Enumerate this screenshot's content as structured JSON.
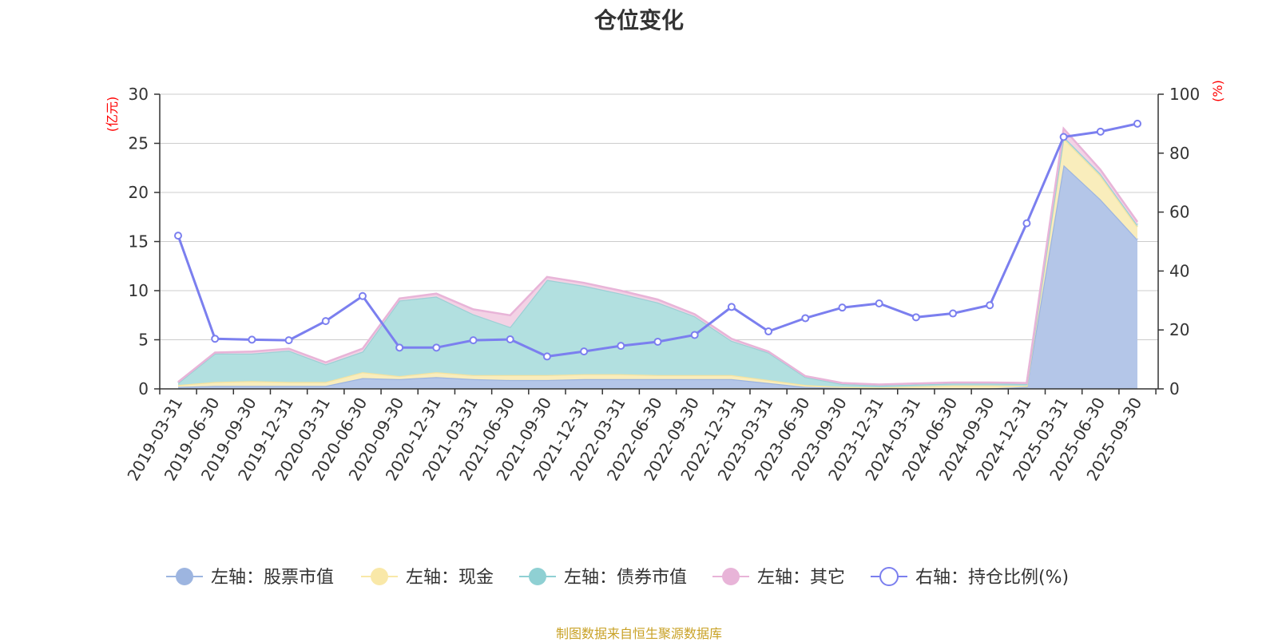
{
  "title": "仓位变化",
  "source": "制图数据来自恒生聚源数据库",
  "chart_data": {
    "type": "area",
    "title": "仓位变化",
    "y_left_unit": "(亿元)",
    "y_right_unit": "(%)",
    "y_left_ticks": [
      "0",
      "5",
      "10",
      "15",
      "20",
      "25",
      "30"
    ],
    "y_right_ticks": [
      "0",
      "20",
      "40",
      "60",
      "80",
      "100"
    ],
    "ylim_left": [
      0,
      30
    ],
    "ylim_right": [
      0,
      100
    ],
    "categories": [
      "2019-03-31",
      "2019-06-30",
      "2019-09-30",
      "2019-12-31",
      "2020-03-31",
      "2020-06-30",
      "2020-09-30",
      "2020-12-31",
      "2021-03-31",
      "2021-06-30",
      "2021-09-30",
      "2021-12-31",
      "2022-03-31",
      "2022-06-30",
      "2022-09-30",
      "2022-12-31",
      "2023-03-31",
      "2023-06-30",
      "2023-09-30",
      "2023-12-31",
      "2024-03-31",
      "2024-06-30",
      "2024-09-30",
      "2024-12-31",
      "2025-03-31",
      "2025-06-30",
      "2025-09-30"
    ],
    "x_tick_labels": [
      "2019-03-31",
      "2019-06-30",
      "2019-09-30",
      "2019-12-31",
      "2020-03-31",
      "2020-06-30",
      "2020-09-30",
      "2020-12-31",
      "2021-03-31",
      "2021-06-30",
      "2021-09-30",
      "2021-12-31",
      "2022-03-31",
      "2022-06-30",
      "2022-09-30",
      "2022-12-31",
      "2023-03-31",
      "2023-06-30",
      "2023-09-30",
      "2023-12-31",
      "2024-03-31",
      "2024-06-30",
      "2024-09-30",
      "2024-12-31",
      "2025-03-31",
      "2025-06-30",
      "2025-09-30"
    ],
    "series": [
      {
        "name": "左轴：股票市值",
        "axis": "left",
        "kind": "stack",
        "fill": "#b4c6e8",
        "stroke": "#9db5e0",
        "values": [
          0.2,
          0.3,
          0.3,
          0.3,
          0.3,
          1.1,
          1.0,
          1.2,
          1.0,
          0.9,
          0.9,
          1.0,
          1.0,
          1.0,
          1.0,
          1.0,
          0.6,
          0.2,
          0.1,
          0.05,
          0.05,
          0.05,
          0.05,
          0.2,
          22.8,
          19.3,
          15.2
        ]
      },
      {
        "name": "左轴：现金",
        "axis": "left",
        "kind": "stack",
        "fill": "#f9edbc",
        "stroke": "#f5e3a0",
        "values": [
          0.2,
          0.4,
          0.5,
          0.4,
          0.4,
          0.6,
          0.3,
          0.5,
          0.4,
          0.5,
          0.5,
          0.5,
          0.5,
          0.4,
          0.4,
          0.4,
          0.3,
          0.2,
          0.1,
          0.1,
          0.2,
          0.3,
          0.3,
          0.1,
          2.7,
          2.4,
          1.3
        ]
      },
      {
        "name": "左轴：债券市值",
        "axis": "left",
        "kind": "stack",
        "fill": "#b2e0e0",
        "stroke": "#9dd0d5",
        "values": [
          0.2,
          2.9,
          2.8,
          3.2,
          1.8,
          2.1,
          7.7,
          7.7,
          6.2,
          4.9,
          9.7,
          9.0,
          8.2,
          7.4,
          6.0,
          3.5,
          2.8,
          0.8,
          0.3,
          0.2,
          0.2,
          0.2,
          0.2,
          0.2,
          0.2,
          0.2,
          0.2
        ]
      },
      {
        "name": "左轴：其它",
        "axis": "left",
        "kind": "stack",
        "fill": "#f3d2e5",
        "stroke": "#e8b4d8",
        "values": [
          0.1,
          0.1,
          0.2,
          0.2,
          0.2,
          0.3,
          0.2,
          0.3,
          0.5,
          1.2,
          0.3,
          0.3,
          0.3,
          0.3,
          0.2,
          0.2,
          0.1,
          0.1,
          0.1,
          0.1,
          0.1,
          0.1,
          0.1,
          0.1,
          0.8,
          0.4,
          0.3
        ]
      },
      {
        "name": "右轴：持仓比例(%)",
        "axis": "right",
        "kind": "line",
        "stroke": "#7b7fef",
        "values": [
          52,
          17,
          16.7,
          16.5,
          23,
          31.5,
          14,
          14,
          16.5,
          16.8,
          11,
          12.7,
          14.6,
          16,
          18.3,
          27.8,
          19.5,
          24,
          27.6,
          29,
          24.3,
          25.6,
          28.4,
          56.2,
          85.5,
          87.3,
          90
        ]
      }
    ],
    "legend": [
      {
        "label": "左轴：股票市值",
        "marker": "dot",
        "color": "#9db5e0"
      },
      {
        "label": "左轴：现金",
        "marker": "dot",
        "color": "#f9e8a8"
      },
      {
        "label": "左轴：债券市值",
        "marker": "dot",
        "color": "#8fd0d3"
      },
      {
        "label": "左轴：其它",
        "marker": "dot",
        "color": "#e8b4d8"
      },
      {
        "label": "右轴：持仓比例(%)",
        "marker": "circle",
        "color": "#7b7fef"
      }
    ],
    "legend_position": "bottom"
  }
}
